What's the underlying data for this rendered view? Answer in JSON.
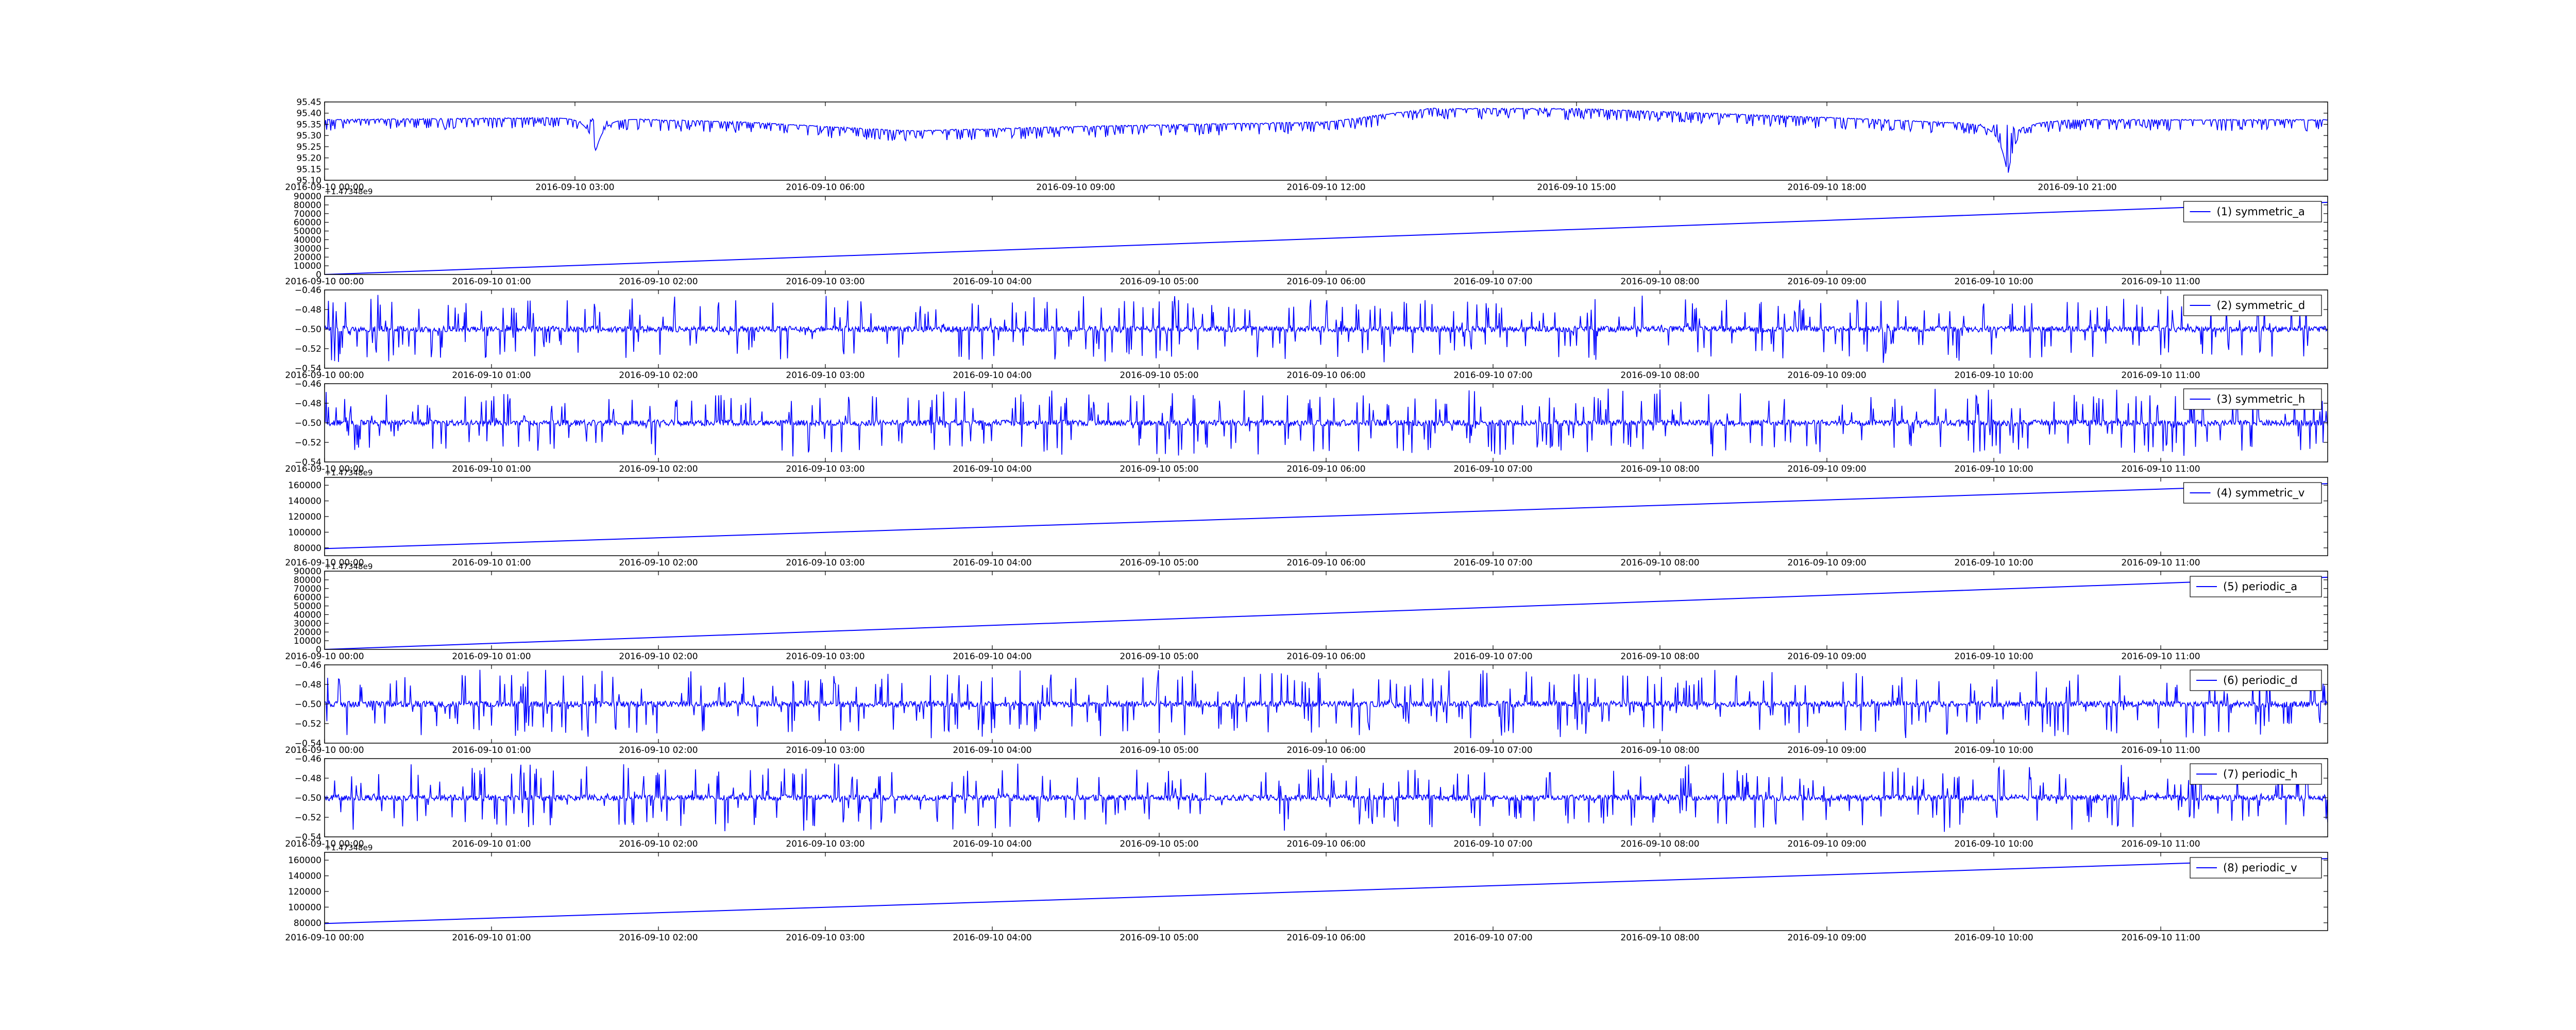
{
  "figure": {
    "background": "#ffffff",
    "line_color": "#0000ff",
    "frame_color": "#000000"
  },
  "chart_data": [
    {
      "type": "line",
      "legend": "",
      "offset_label": "",
      "ylim": [
        95.1,
        95.45
      ],
      "yticks": [
        "95.10",
        "95.15",
        "95.20",
        "95.25",
        "95.30",
        "95.35",
        "95.40",
        "95.45"
      ],
      "xticks": [
        "2016-09-10 00:00",
        "2016-09-10 03:00",
        "2016-09-10 06:00",
        "2016-09-10 09:00",
        "2016-09-10 12:00",
        "2016-09-10 15:00",
        "2016-09-10 18:00",
        "2016-09-10 21:00"
      ],
      "x_range": [
        "2016-09-10 00:00",
        "2016-09-11 00:00"
      ],
      "signal": "spiky",
      "baseline": [
        [
          "2016-09-10 00:00",
          95.37
        ],
        [
          "2016-09-10 03:00",
          95.38
        ],
        [
          "2016-09-10 05:00",
          95.36
        ],
        [
          "2016-09-10 07:00",
          95.32
        ],
        [
          "2016-09-10 09:00",
          95.34
        ],
        [
          "2016-09-10 12:00",
          95.36
        ],
        [
          "2016-09-10 13:15",
          95.42
        ],
        [
          "2016-09-10 15:00",
          95.42
        ],
        [
          "2016-09-10 18:00",
          95.38
        ],
        [
          "2016-09-10 20:00",
          95.35
        ],
        [
          "2016-09-10 21:00",
          95.37
        ],
        [
          "2016-09-10 23:59",
          95.37
        ]
      ],
      "spike_depth": 0.05,
      "dips": [
        {
          "x": "2016-09-10 03:15",
          "y": 95.23
        },
        {
          "x": "2016-09-10 20:10",
          "y": 95.12
        }
      ]
    },
    {
      "type": "line",
      "legend": "(1) symmetric_a",
      "offset_label": "+1.47348e9",
      "ylim": [
        0,
        90000
      ],
      "yticks": [
        "0",
        "10000",
        "20000",
        "30000",
        "40000",
        "50000",
        "60000",
        "70000",
        "80000",
        "90000"
      ],
      "xticks": [
        "2016-09-10 00:00",
        "2016-09-10 01:00",
        "2016-09-10 02:00",
        "2016-09-10 03:00",
        "2016-09-10 04:00",
        "2016-09-10 05:00",
        "2016-09-10 06:00",
        "2016-09-10 07:00",
        "2016-09-10 08:00",
        "2016-09-10 09:00",
        "2016-09-10 10:00",
        "2016-09-10 11:00"
      ],
      "x_range": [
        "2016-09-10 00:00",
        "2016-09-10 12:00"
      ],
      "signal": "linear",
      "start_point": {
        "x": "2016-09-10 00:00",
        "y": 0
      },
      "end_point": {
        "x": "2016-09-10 12:00",
        "y": 83000
      }
    },
    {
      "type": "line",
      "legend": "(2) symmetric_d",
      "offset_label": "",
      "ylim": [
        -0.54,
        -0.46
      ],
      "yticks": [
        "−0.54",
        "−0.52",
        "−0.50",
        "−0.48",
        "−0.46"
      ],
      "xticks": [
        "2016-09-10 00:00",
        "2016-09-10 01:00",
        "2016-09-10 02:00",
        "2016-09-10 03:00",
        "2016-09-10 04:00",
        "2016-09-10 05:00",
        "2016-09-10 06:00",
        "2016-09-10 07:00",
        "2016-09-10 08:00",
        "2016-09-10 09:00",
        "2016-09-10 10:00",
        "2016-09-10 11:00"
      ],
      "x_range": [
        "2016-09-10 00:00",
        "2016-09-10 12:00"
      ],
      "signal": "noise",
      "center": -0.5,
      "spike_range": [
        -0.535,
        -0.465
      ]
    },
    {
      "type": "line",
      "legend": "(3) symmetric_h",
      "offset_label": "",
      "ylim": [
        -0.54,
        -0.46
      ],
      "yticks": [
        "−0.54",
        "−0.52",
        "−0.50",
        "−0.48",
        "−0.46"
      ],
      "xticks": [
        "2016-09-10 00:00",
        "2016-09-10 01:00",
        "2016-09-10 02:00",
        "2016-09-10 03:00",
        "2016-09-10 04:00",
        "2016-09-10 05:00",
        "2016-09-10 06:00",
        "2016-09-10 07:00",
        "2016-09-10 08:00",
        "2016-09-10 09:00",
        "2016-09-10 10:00",
        "2016-09-10 11:00"
      ],
      "x_range": [
        "2016-09-10 00:00",
        "2016-09-10 12:00"
      ],
      "signal": "noise",
      "center": -0.5,
      "spike_range": [
        -0.535,
        -0.465
      ]
    },
    {
      "type": "line",
      "legend": "(4) symmetric_v",
      "offset_label": "+1.47348e9",
      "ylim": [
        70000,
        170000
      ],
      "yticks": [
        "80000",
        "100000",
        "120000",
        "140000",
        "160000"
      ],
      "xticks": [
        "2016-09-10 00:00",
        "2016-09-10 01:00",
        "2016-09-10 02:00",
        "2016-09-10 03:00",
        "2016-09-10 04:00",
        "2016-09-10 05:00",
        "2016-09-10 06:00",
        "2016-09-10 07:00",
        "2016-09-10 08:00",
        "2016-09-10 09:00",
        "2016-09-10 10:00",
        "2016-09-10 11:00"
      ],
      "x_range": [
        "2016-09-10 00:00",
        "2016-09-10 12:00"
      ],
      "signal": "linear",
      "start_point": {
        "x": "2016-09-10 00:00",
        "y": 79000
      },
      "end_point": {
        "x": "2016-09-10 12:00",
        "y": 162000
      }
    },
    {
      "type": "line",
      "legend": "(5) periodic_a",
      "offset_label": "+1.47348e9",
      "ylim": [
        0,
        90000
      ],
      "yticks": [
        "0",
        "10000",
        "20000",
        "30000",
        "40000",
        "50000",
        "60000",
        "70000",
        "80000",
        "90000"
      ],
      "xticks": [
        "2016-09-10 00:00",
        "2016-09-10 01:00",
        "2016-09-10 02:00",
        "2016-09-10 03:00",
        "2016-09-10 04:00",
        "2016-09-10 05:00",
        "2016-09-10 06:00",
        "2016-09-10 07:00",
        "2016-09-10 08:00",
        "2016-09-10 09:00",
        "2016-09-10 10:00",
        "2016-09-10 11:00"
      ],
      "x_range": [
        "2016-09-10 00:00",
        "2016-09-10 12:00"
      ],
      "signal": "linear",
      "start_point": {
        "x": "2016-09-10 00:00",
        "y": 0
      },
      "end_point": {
        "x": "2016-09-10 12:00",
        "y": 83000
      }
    },
    {
      "type": "line",
      "legend": "(6) periodic_d",
      "offset_label": "",
      "ylim": [
        -0.54,
        -0.46
      ],
      "yticks": [
        "−0.54",
        "−0.52",
        "−0.50",
        "−0.48",
        "−0.46"
      ],
      "xticks": [
        "2016-09-10 00:00",
        "2016-09-10 01:00",
        "2016-09-10 02:00",
        "2016-09-10 03:00",
        "2016-09-10 04:00",
        "2016-09-10 05:00",
        "2016-09-10 06:00",
        "2016-09-10 07:00",
        "2016-09-10 08:00",
        "2016-09-10 09:00",
        "2016-09-10 10:00",
        "2016-09-10 11:00"
      ],
      "x_range": [
        "2016-09-10 00:00",
        "2016-09-10 12:00"
      ],
      "signal": "noise",
      "center": -0.5,
      "spike_range": [
        -0.535,
        -0.465
      ]
    },
    {
      "type": "line",
      "legend": "(7) periodic_h",
      "offset_label": "",
      "ylim": [
        -0.54,
        -0.46
      ],
      "yticks": [
        "−0.54",
        "−0.52",
        "−0.50",
        "−0.48",
        "−0.46"
      ],
      "xticks": [
        "2016-09-10 00:00",
        "2016-09-10 01:00",
        "2016-09-10 02:00",
        "2016-09-10 03:00",
        "2016-09-10 04:00",
        "2016-09-10 05:00",
        "2016-09-10 06:00",
        "2016-09-10 07:00",
        "2016-09-10 08:00",
        "2016-09-10 09:00",
        "2016-09-10 10:00",
        "2016-09-10 11:00"
      ],
      "x_range": [
        "2016-09-10 00:00",
        "2016-09-10 12:00"
      ],
      "signal": "noise",
      "center": -0.5,
      "spike_range": [
        -0.535,
        -0.465
      ]
    },
    {
      "type": "line",
      "legend": "(8) periodic_v",
      "offset_label": "+1.47348e9",
      "ylim": [
        70000,
        170000
      ],
      "yticks": [
        "80000",
        "100000",
        "120000",
        "140000",
        "160000"
      ],
      "xticks": [
        "2016-09-10 00:00",
        "2016-09-10 01:00",
        "2016-09-10 02:00",
        "2016-09-10 03:00",
        "2016-09-10 04:00",
        "2016-09-10 05:00",
        "2016-09-10 06:00",
        "2016-09-10 07:00",
        "2016-09-10 08:00",
        "2016-09-10 09:00",
        "2016-09-10 10:00",
        "2016-09-10 11:00"
      ],
      "x_range": [
        "2016-09-10 00:00",
        "2016-09-10 12:00"
      ],
      "signal": "linear",
      "start_point": {
        "x": "2016-09-10 00:00",
        "y": 79000
      },
      "end_point": {
        "x": "2016-09-10 12:00",
        "y": 162000
      }
    }
  ]
}
